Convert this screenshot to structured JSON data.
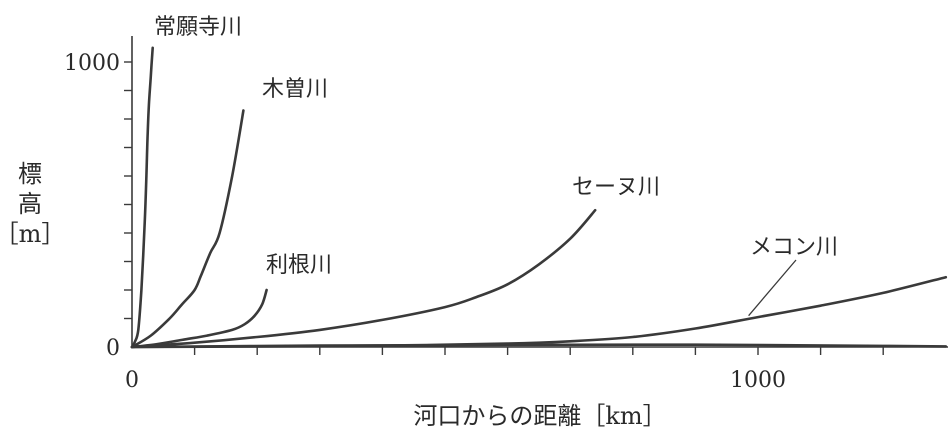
{
  "chart_data": {
    "type": "line",
    "title": "",
    "xlabel": "河口からの距離［km］",
    "ylabel": [
      "標",
      "高",
      "［m］"
    ],
    "xlim": [
      0,
      1300
    ],
    "ylim": [
      0,
      1100
    ],
    "x_tick_labels": [
      {
        "value": 0,
        "label": "0"
      },
      {
        "value": 1000,
        "label": "1000"
      }
    ],
    "y_tick_labels": [
      {
        "value": 0,
        "label": "0"
      },
      {
        "value": 1000,
        "label": "1000"
      }
    ],
    "x_minor_ticks": [
      100,
      200,
      300,
      400,
      500,
      600,
      700,
      800,
      900,
      1000,
      1100,
      1200
    ],
    "y_minor_ticks": [
      100,
      200,
      300,
      400,
      500,
      600,
      700,
      800,
      900,
      1000
    ],
    "series": [
      {
        "name": "常願寺川",
        "x": [
          0,
          5,
          10,
          15,
          20,
          23,
          25,
          27,
          30,
          33
        ],
        "y": [
          0,
          20,
          60,
          200,
          420,
          600,
          750,
          850,
          950,
          1050
        ]
      },
      {
        "name": "木曽川",
        "x": [
          0,
          30,
          60,
          80,
          100,
          110,
          125,
          140,
          160,
          178
        ],
        "y": [
          0,
          40,
          100,
          150,
          200,
          250,
          330,
          400,
          600,
          830
        ]
      },
      {
        "name": "利根川",
        "x": [
          0,
          40,
          80,
          120,
          160,
          180,
          196,
          208,
          215
        ],
        "y": [
          0,
          10,
          25,
          40,
          60,
          80,
          110,
          150,
          200
        ]
      },
      {
        "name": "セーヌ川",
        "x": [
          0,
          100,
          200,
          300,
          400,
          500,
          550,
          600,
          650,
          700,
          740
        ],
        "y": [
          0,
          15,
          35,
          60,
          95,
          140,
          175,
          220,
          290,
          380,
          480
        ]
      },
      {
        "name": "メコン川",
        "x": [
          0,
          200,
          400,
          600,
          700,
          800,
          900,
          1000,
          1100,
          1200,
          1300
        ],
        "y": [
          0,
          2,
          5,
          12,
          20,
          35,
          65,
          105,
          145,
          190,
          245
        ]
      },
      {
        "name": "",
        "x": [
          0,
          300,
          600,
          900,
          1200,
          1300
        ],
        "y": [
          0,
          5,
          7,
          8,
          4,
          2
        ]
      }
    ],
    "annotations": [
      {
        "series": "メコン川",
        "label": "メコン川",
        "leader_to": {
          "x": 985,
          "y": 110
        }
      }
    ],
    "legend": "none",
    "grid": false
  }
}
